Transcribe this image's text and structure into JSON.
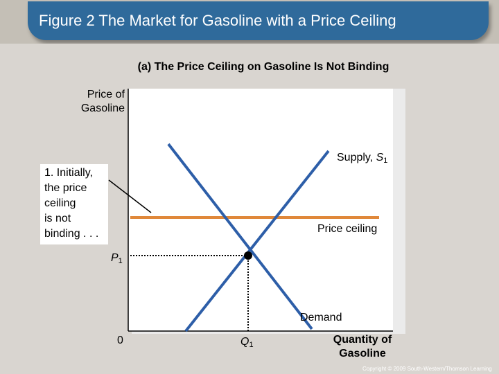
{
  "title": "Figure 2 The Market for Gasoline with a Price Ceiling",
  "panel_title": "(a) The Price Ceiling on Gasoline Is Not Binding",
  "y_axis_label": "Price of\nGasoline",
  "x_axis_label": "Quantity of\nGasoline",
  "origin_label": "0",
  "callout": "1. Initially,\nthe price\nceiling\nis not\nbinding . . .",
  "supply_label": {
    "prefix": "Supply, ",
    "symbol": "S",
    "subscript": "1"
  },
  "price_ceiling_label": "Price ceiling",
  "demand_label": "Demand",
  "equilibrium_price": {
    "symbol": "P",
    "subscript": "1"
  },
  "equilibrium_quantity": {
    "symbol": "Q",
    "subscript": "1"
  },
  "copyright": "Copyright © 2009 South-Western/Thomson Learning",
  "colors": {
    "title_bar": "#2f6a9b",
    "supply_demand_lines": "#2d5ea8",
    "price_ceiling_line": "#e0883a",
    "background": "#d9d5d0"
  }
}
